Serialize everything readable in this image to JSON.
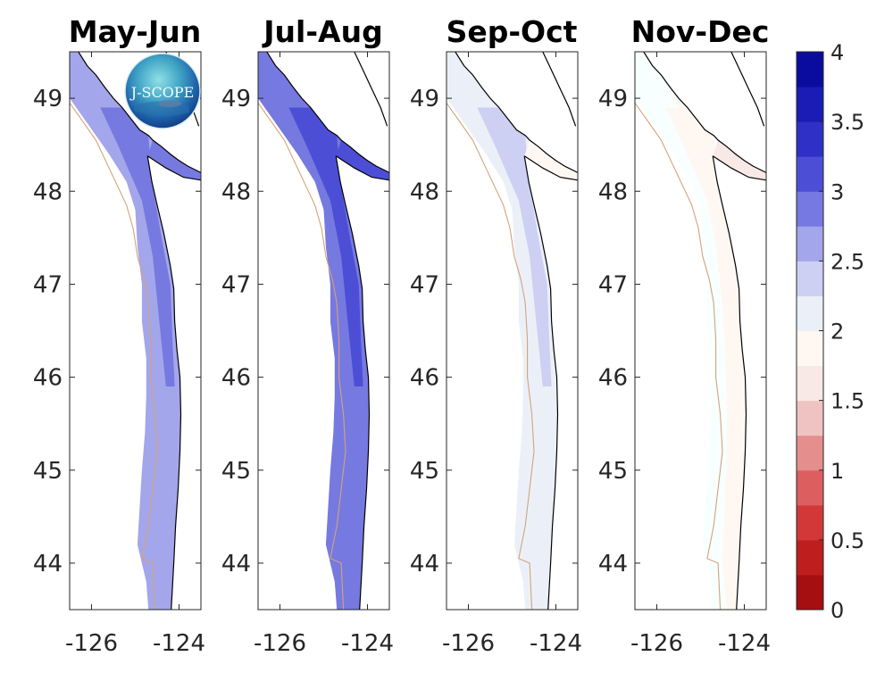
{
  "chart_data": {
    "type": "heatmap",
    "title": "",
    "panels": [
      {
        "title": "May-Jun",
        "dominant_value": 2.6,
        "shelf_value": 2.7,
        "nearshore_value": 2.8,
        "strait_value": 2.9
      },
      {
        "title": "Jul-Aug",
        "dominant_value": 2.8,
        "shelf_value": 2.9,
        "nearshore_value": 3.0,
        "strait_value": 3.2
      },
      {
        "title": "Sep-Oct",
        "dominant_value": 2.2,
        "shelf_value": 2.3,
        "nearshore_value": 2.4,
        "strait_value": 1.8
      },
      {
        "title": "Nov-Dec",
        "dominant_value": 1.9,
        "shelf_value": 1.8,
        "nearshore_value": 1.85,
        "strait_value": 1.5
      }
    ],
    "x_axis": {
      "ticks": [
        -126,
        -124
      ],
      "tick_labels": [
        "-126",
        "-124"
      ],
      "range": [
        -126.5,
        -123.5
      ]
    },
    "y_axis": {
      "ticks": [
        44,
        45,
        46,
        47,
        48,
        49
      ],
      "tick_labels": [
        "44",
        "45",
        "46",
        "47",
        "48",
        "49"
      ],
      "range": [
        43.5,
        49.5
      ]
    },
    "colorbar": {
      "range": [
        0,
        4
      ],
      "ticks": [
        0,
        0.5,
        1,
        1.5,
        2,
        2.5,
        3,
        3.5,
        4
      ],
      "tick_labels": [
        "0",
        "0.5",
        "1",
        "1.5",
        "2",
        "2.5",
        "3",
        "3.5",
        "4"
      ],
      "levels": 16,
      "colors": [
        "#7f0000",
        "#a50f0f",
        "#be1e1e",
        "#d23838",
        "#dd5e5e",
        "#e58e8e",
        "#f0c3c3",
        "#f8e8e6",
        "#fff8f2",
        "#f8ffff",
        "#ebf0f8",
        "#cdd0f2",
        "#a3a6ea",
        "#7679e0",
        "#4c4fd6",
        "#2e30c6",
        "#1a1cb5",
        "#0a0c9e",
        "#00007a"
      ],
      "location": "right"
    },
    "logo_text": "J-SCOPE"
  },
  "colors": {
    "coast": "#000000",
    "isobath": "#d4a27a",
    "frame": "#262626"
  }
}
